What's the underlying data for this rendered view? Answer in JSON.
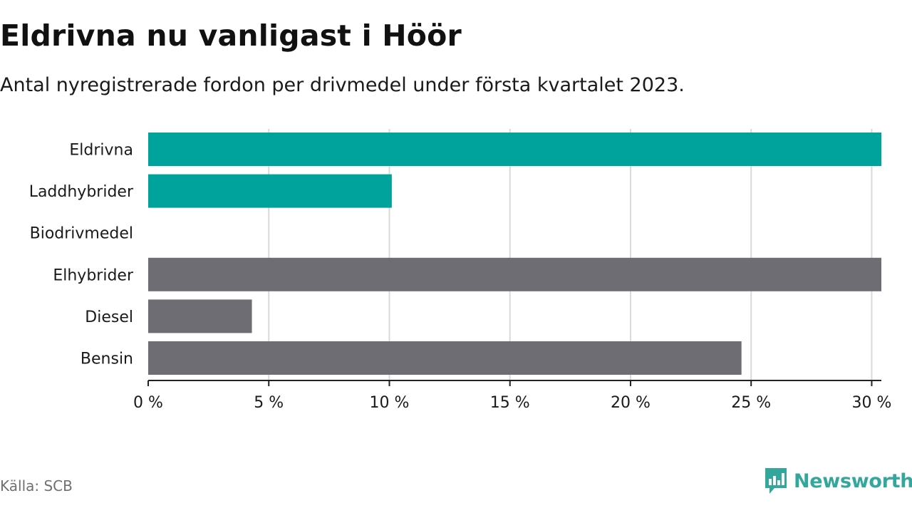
{
  "title": "Eldrivna nu vanligast i Höör",
  "subtitle": "Antal nyregistrerade fordon per drivmedel under första kvartalet 2023.",
  "source": "Källa: SCB",
  "brand": {
    "name": "Newsworthy",
    "icon": "newsworthy-logo-icon",
    "color": "#34a79c"
  },
  "colors": {
    "highlight": "#00a39b",
    "other": "#6e6d73",
    "grid": "#d9d9d9",
    "axis": "#222222"
  },
  "chart_data": {
    "type": "bar",
    "orientation": "horizontal",
    "categories": [
      "Eldrivna",
      "Laddhybrider",
      "Biodrivmedel",
      "Elhybrider",
      "Diesel",
      "Bensin"
    ],
    "values": [
      30.4,
      10.1,
      0,
      30.4,
      4.3,
      24.6
    ],
    "groups": [
      "highlight",
      "highlight",
      "highlight",
      "other",
      "other",
      "other"
    ],
    "xlim": [
      0,
      30.4
    ],
    "xticks": [
      0,
      5,
      10,
      15,
      20,
      25,
      30
    ],
    "xtick_labels": [
      "0 %",
      "5 %",
      "10 %",
      "15 %",
      "20 %",
      "25 %",
      "30 %"
    ],
    "grid": true
  }
}
